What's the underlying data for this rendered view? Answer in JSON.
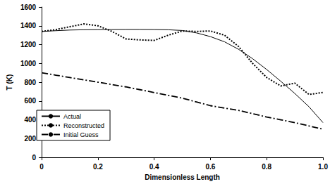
{
  "chart_data": {
    "type": "line",
    "x_label": "Dimensionless Length",
    "y_label": "T (K)",
    "x": [
      0,
      0.05,
      0.1,
      0.15,
      0.2,
      0.25,
      0.3,
      0.35,
      0.4,
      0.45,
      0.5,
      0.55,
      0.6,
      0.65,
      0.7,
      0.75,
      0.8,
      0.85,
      0.9,
      0.95,
      1.0
    ],
    "series": [
      {
        "name": "Actual",
        "color": "#000000",
        "line_style": "solid",
        "values": [
          1340,
          1348,
          1355,
          1358,
          1360,
          1361,
          1362,
          1362,
          1361,
          1358,
          1350,
          1325,
          1285,
          1230,
          1150,
          1050,
          935,
          810,
          680,
          540,
          370
        ]
      },
      {
        "name": "Reconstructed",
        "color": "#000000",
        "line_style": "dotted",
        "values": [
          1340,
          1360,
          1390,
          1420,
          1400,
          1340,
          1260,
          1250,
          1245,
          1300,
          1345,
          1340,
          1345,
          1300,
          1180,
          1000,
          850,
          760,
          790,
          670,
          690
        ]
      },
      {
        "name": "Initial Guess",
        "color": "#000000",
        "line_style": "dashdot",
        "values": [
          900,
          875,
          850,
          825,
          800,
          775,
          750,
          720,
          690,
          660,
          630,
          590,
          550,
          525,
          500,
          465,
          430,
          400,
          370,
          335,
          300
        ]
      }
    ],
    "xlim": [
      0,
      1.0
    ],
    "xticks": [
      0,
      {
        "value": 0.2,
        "label": "0.2"
      },
      {
        "value": 0.4,
        "label": "0.4"
      },
      {
        "value": 0.6,
        "label": "0.6"
      },
      {
        "value": 0.8,
        "label": "0.8"
      },
      {
        "value": 1.0,
        "label": "1.0"
      }
    ],
    "ylim": [
      0,
      1600
    ],
    "yticks": [
      0,
      200,
      400,
      600,
      800,
      1000,
      1200,
      1400,
      1600
    ],
    "grid": false,
    "legend": "lower left"
  }
}
